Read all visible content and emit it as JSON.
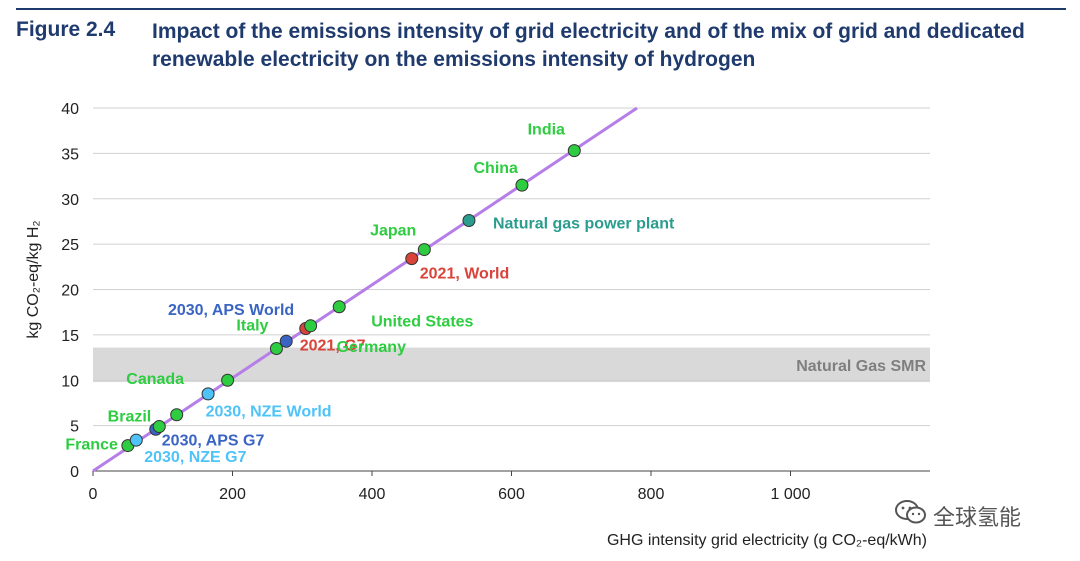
{
  "figure": {
    "number": "Figure 2.4",
    "title": "Impact of the emissions intensity of grid electricity and of the mix of grid and dedicated renewable electricity on the emissions intensity of hydrogen"
  },
  "watermark": {
    "text": "全球氢能",
    "icon": "wechat-icon"
  },
  "chart_data": {
    "type": "scatter",
    "title": "",
    "xlabel": "GHG intensity grid electricity (g CO₂-eq/kWh)",
    "ylabel": "kg CO₂-eq/kg H₂",
    "xlim": [
      0,
      1200
    ],
    "ylim": [
      0,
      40
    ],
    "x_ticks": [
      0,
      200,
      400,
      600,
      800,
      1000
    ],
    "x_tick_labels": [
      "0",
      "200",
      "400",
      "600",
      "800",
      "1 000"
    ],
    "y_ticks": [
      0,
      5,
      10,
      15,
      20,
      25,
      30,
      35,
      40
    ],
    "grid": {
      "horizontal": true,
      "vertical": false
    },
    "trend_line": {
      "x": [
        0,
        780
      ],
      "y": [
        0,
        40
      ],
      "color": "#b57ee8"
    },
    "band": {
      "label": "Natural Gas SMR",
      "y_range": [
        9.8,
        13.6
      ],
      "color": "#d9d9d9"
    },
    "colors": {
      "country": "#2ecc40",
      "world_2021": "#d9433a",
      "aps": "#3a64c4",
      "nze": "#4fc3f7",
      "plant": "#2a9d8f"
    },
    "points": [
      {
        "label": "France",
        "x": 50,
        "y": 2.8,
        "group": "country"
      },
      {
        "label": "2030, NZE G7",
        "x": 62,
        "y": 3.4,
        "group": "nze"
      },
      {
        "label": "2030, APS G7",
        "x": 90,
        "y": 4.6,
        "group": "aps"
      },
      {
        "label": "Brazil",
        "x": 95,
        "y": 4.9,
        "group": "country"
      },
      {
        "label": "",
        "x": 120,
        "y": 6.2,
        "group": "country"
      },
      {
        "label": "Canada",
        "x": 165,
        "y": 8.5,
        "group": "nze"
      },
      {
        "label": "2030, NZE World",
        "x": 193,
        "y": 10.0,
        "group": "country"
      },
      {
        "label": "Italy",
        "x": 263,
        "y": 13.5,
        "group": "country"
      },
      {
        "label": "2030, APS World",
        "x": 277,
        "y": 14.3,
        "group": "aps"
      },
      {
        "label": "2021, G7",
        "x": 305,
        "y": 15.7,
        "group": "world_2021"
      },
      {
        "label": "Germany",
        "x": 312,
        "y": 16.0,
        "group": "country"
      },
      {
        "label": "United States",
        "x": 353,
        "y": 18.1,
        "group": "country"
      },
      {
        "label": "2021, World",
        "x": 457,
        "y": 23.4,
        "group": "world_2021"
      },
      {
        "label": "Japan",
        "x": 475,
        "y": 24.4,
        "group": "country"
      },
      {
        "label": "Natural gas power plant",
        "x": 539,
        "y": 27.6,
        "group": "plant"
      },
      {
        "label": "China",
        "x": 615,
        "y": 31.5,
        "group": "country"
      },
      {
        "label": "India",
        "x": 690,
        "y": 35.3,
        "group": "country"
      }
    ]
  }
}
